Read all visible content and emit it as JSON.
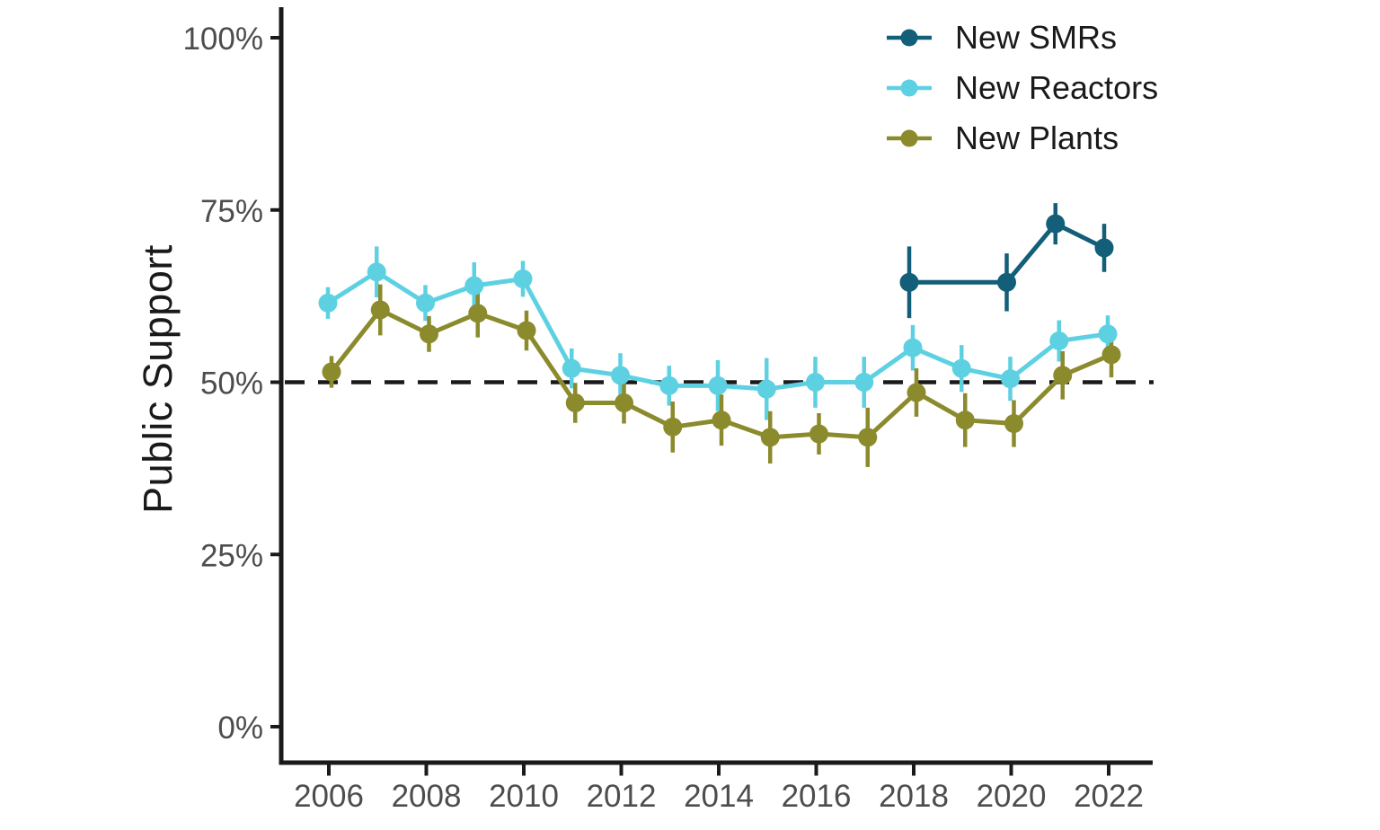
{
  "chart_data": {
    "type": "line",
    "title": "",
    "xlabel": "",
    "ylabel": "Public Support",
    "ylim": [
      0,
      100
    ],
    "xlim": [
      2005,
      2023
    ],
    "grid": false,
    "background": "#ffffff",
    "axis_color": "#1a1a1a",
    "tick_label_color": "#4d4d4d",
    "legend_position": "top-right",
    "yticks": [
      0,
      25,
      50,
      75,
      100
    ],
    "ytick_labels": [
      "0%",
      "25%",
      "50%",
      "75%",
      "100%"
    ],
    "xticks": [
      2006,
      2008,
      2010,
      2012,
      2014,
      2016,
      2018,
      2020,
      2022
    ],
    "xtick_labels": [
      "2006",
      "2008",
      "2010",
      "2012",
      "2014",
      "2016",
      "2018",
      "2020",
      "2022"
    ],
    "reference_line": {
      "y": 50,
      "style": "dashed",
      "color": "#1a1a1a"
    },
    "series": [
      {
        "name": "New SMRs",
        "color": "#135e78",
        "x": [
          2018,
          2020,
          2021,
          2022
        ],
        "y": [
          64.5,
          64.5,
          73,
          69.5
        ],
        "err": [
          5.2,
          4.2,
          3,
          3.5
        ]
      },
      {
        "name": "New Reactors",
        "color": "#5dd1e2",
        "x": [
          2006,
          2007,
          2008,
          2009,
          2010,
          2011,
          2012,
          2013,
          2014,
          2015,
          2016,
          2017,
          2018,
          2019,
          2020,
          2021,
          2022
        ],
        "y": [
          61.5,
          66,
          61.5,
          64,
          65,
          52,
          51,
          49.5,
          49.5,
          49,
          50,
          50,
          55,
          52,
          50.5,
          56,
          57
        ],
        "err": [
          2.3,
          3.7,
          2.6,
          3.4,
          2.6,
          2.9,
          3.2,
          2.9,
          3.7,
          4.5,
          3.7,
          3.7,
          3.3,
          3.4,
          3.2,
          3.0,
          2.7
        ]
      },
      {
        "name": "New Plants",
        "color": "#8b8a2c",
        "x": [
          2006,
          2007,
          2008,
          2009,
          2010,
          2011,
          2012,
          2013,
          2014,
          2015,
          2016,
          2017,
          2018,
          2019,
          2020,
          2021,
          2022
        ],
        "y": [
          51.5,
          60.5,
          57,
          60,
          57.5,
          47,
          47,
          43.5,
          44.5,
          42,
          42.5,
          42,
          48.5,
          44.5,
          44,
          51,
          54
        ],
        "err": [
          2.3,
          3.7,
          2.6,
          3.5,
          2.9,
          2.9,
          3.0,
          3.7,
          3.7,
          3.8,
          3.0,
          4.3,
          3.5,
          3.9,
          3.4,
          3.5,
          3.3
        ]
      }
    ]
  }
}
